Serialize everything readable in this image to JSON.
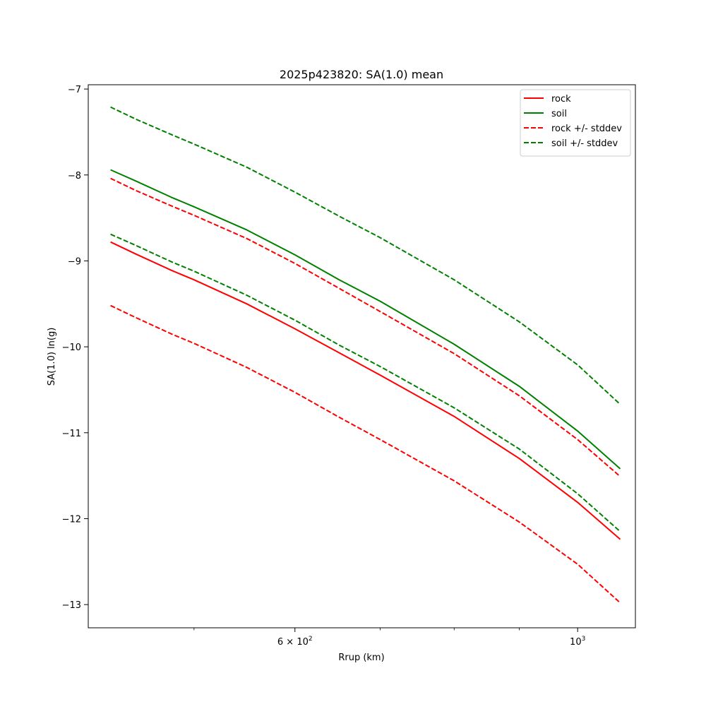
{
  "chart_data": {
    "type": "line",
    "title": "2025p423820: SA(1.0) mean",
    "xlabel": "Rrup (km)",
    "ylabel": "SA(1.0) ln(g)",
    "xscale": "log",
    "xlim": [
      413,
      1110
    ],
    "ylim": [
      -13.27,
      -6.95
    ],
    "grid": false,
    "legend_position": "upper right",
    "x_ticks": [
      {
        "value": 600,
        "label": "6 × 10",
        "exp": "2"
      },
      {
        "value": 1000,
        "label": "10",
        "exp": "3"
      }
    ],
    "x_minor_ticks": [
      500,
      700,
      800,
      900
    ],
    "y_ticks": [
      {
        "value": -7,
        "label": "−7"
      },
      {
        "value": -8,
        "label": "−8"
      },
      {
        "value": -9,
        "label": "−9"
      },
      {
        "value": -10,
        "label": "−10"
      },
      {
        "value": -11,
        "label": "−11"
      },
      {
        "value": -12,
        "label": "−12"
      },
      {
        "value": -13,
        "label": "−13"
      }
    ],
    "x": [
      430,
      450,
      480,
      500,
      550,
      600,
      650,
      700,
      800,
      900,
      1000,
      1080
    ],
    "series": [
      {
        "name": "rock",
        "color": "#ff0000",
        "dash": false,
        "legend": true,
        "values": [
          -8.78,
          -8.92,
          -9.11,
          -9.22,
          -9.5,
          -9.79,
          -10.07,
          -10.33,
          -10.81,
          -11.3,
          -11.81,
          -12.24
        ]
      },
      {
        "name": "soil",
        "color": "#008000",
        "dash": false,
        "legend": true,
        "values": [
          -7.94,
          -8.07,
          -8.26,
          -8.37,
          -8.64,
          -8.93,
          -9.22,
          -9.47,
          -9.97,
          -10.46,
          -10.98,
          -11.42
        ]
      },
      {
        "name": "rock +/- stddev",
        "color": "#ff0000",
        "dash": true,
        "legend": true,
        "values": [
          -8.04,
          -8.18,
          -8.36,
          -8.47,
          -8.74,
          -9.03,
          -9.32,
          -9.59,
          -10.08,
          -10.57,
          -11.08,
          -11.51
        ]
      },
      {
        "name": "rock +/- stddev",
        "color": "#ff0000",
        "dash": true,
        "legend": false,
        "values": [
          -9.52,
          -9.66,
          -9.85,
          -9.96,
          -10.24,
          -10.53,
          -10.82,
          -11.08,
          -11.56,
          -12.04,
          -12.53,
          -12.98
        ]
      },
      {
        "name": "soil +/- stddev",
        "color": "#008000",
        "dash": true,
        "legend": true,
        "values": [
          -7.21,
          -7.35,
          -7.53,
          -7.64,
          -7.91,
          -8.2,
          -8.48,
          -8.73,
          -9.22,
          -9.71,
          -10.21,
          -10.67
        ]
      },
      {
        "name": "soil +/- stddev",
        "color": "#008000",
        "dash": true,
        "legend": false,
        "values": [
          -8.69,
          -8.82,
          -9.01,
          -9.12,
          -9.4,
          -9.69,
          -9.98,
          -10.23,
          -10.71,
          -11.19,
          -11.71,
          -12.15
        ]
      }
    ]
  }
}
